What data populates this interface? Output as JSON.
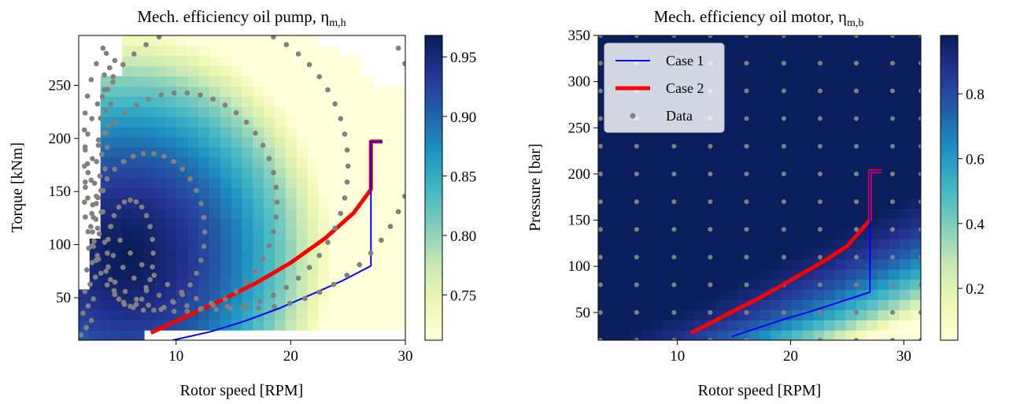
{
  "chart_data": [
    {
      "type": "heatmap",
      "title": "Mech. efficiency oil pump, η",
      "title_sub": "m,h",
      "xlabel": "Rotor speed [RPM]",
      "ylabel": "Torque [kNm]",
      "xlim": [
        1.5,
        30
      ],
      "ylim": [
        10,
        297
      ],
      "xticks": [
        10,
        20,
        30
      ],
      "yticks": [
        50,
        100,
        150,
        200,
        250
      ],
      "colorbar": {
        "range": [
          0.712,
          0.968
        ],
        "ticks": [
          "0.95",
          "0.90",
          "0.85",
          "0.80",
          "0.75"
        ],
        "tick_values": [
          0.95,
          0.9,
          0.85,
          0.8,
          0.75
        ],
        "colormap": "YlGnBu"
      },
      "series": [
        {
          "name": "Case 1",
          "color": "#0000ff",
          "x": [
            9.7,
            13.0,
            16.0,
            19.0,
            22.0,
            24.5,
            27.0,
            27.0,
            27.4,
            28.0
          ],
          "y": [
            10,
            18,
            28,
            40,
            54,
            66,
            80,
            197,
            197,
            197
          ]
        },
        {
          "name": "Case 2",
          "color": "#ff0000",
          "x": [
            7.8,
            11.0,
            14.0,
            17.0,
            20.0,
            23.0,
            25.5,
            27.0,
            27.0,
            27.4,
            28.0
          ],
          "y": [
            17,
            33,
            48,
            64,
            83,
            106,
            130,
            152,
            197,
            197,
            197
          ]
        }
      ],
      "data_points": {
        "name": "Data",
        "color": "#808080",
        "ellipses": [
          {
            "eff": 0.96,
            "cx": 6.0,
            "cy": 92,
            "rx": 2.0,
            "ry": 50,
            "n": 24
          },
          {
            "eff": 0.95,
            "cx": 7.6,
            "cy": 112,
            "rx": 4.9,
            "ry": 74,
            "n": 34
          },
          {
            "eff": 0.94,
            "cx": 10.4,
            "cy": 140,
            "rx": 8.4,
            "ry": 103,
            "n": 46
          },
          {
            "eff": 0.93,
            "cx": 13.5,
            "cy": 174,
            "rx": 11.5,
            "ry": 135,
            "n": 56
          },
          {
            "eff": 0.92,
            "cx": 16.5,
            "cy": 208,
            "rx": 14.5,
            "ry": 168,
            "n": 66
          }
        ]
      }
    },
    {
      "type": "heatmap",
      "title": "Mech. efficiency oil motor, η",
      "title_sub": "m,b",
      "xlabel": "Rotor speed [RPM]",
      "ylabel": "Pressure [bar]",
      "xlim": [
        3,
        31.5
      ],
      "ylim": [
        20,
        350
      ],
      "xticks": [
        10,
        20,
        30
      ],
      "yticks": [
        50,
        100,
        150,
        200,
        250,
        300,
        350
      ],
      "colorbar": {
        "range": [
          0.04,
          0.98
        ],
        "ticks": [
          "0.8",
          "0.6",
          "0.4",
          "0.2"
        ],
        "tick_values": [
          0.8,
          0.6,
          0.4,
          0.2
        ],
        "colormap": "YlGnBu"
      },
      "series": [
        {
          "name": "Case 1",
          "color": "#0000ff",
          "x": [
            14.8,
            17.0,
            19.5,
            22.0,
            24.5,
            27.0,
            27.0,
            27.4,
            28.0
          ],
          "y": [
            24,
            33,
            43,
            52,
            62,
            72,
            203,
            203,
            203
          ]
        },
        {
          "name": "Case 2",
          "color": "#ff0000",
          "x": [
            11.2,
            13.0,
            15.0,
            17.0,
            19.0,
            21.0,
            23.0,
            25.0,
            27.0,
            27.0,
            27.4,
            28.0
          ],
          "y": [
            28,
            39,
            52,
            64,
            78,
            92,
            106,
            122,
            150,
            203,
            203,
            203
          ]
        }
      ],
      "data_points": {
        "name": "Data",
        "color": "#808080",
        "x": [
          3.2,
          6.4,
          9.7,
          12.9,
          16.1,
          19.4,
          22.6,
          25.8,
          29.0,
          31.5
        ],
        "y": [
          20,
          50,
          80,
          110,
          140,
          170,
          200,
          230,
          260,
          290,
          320,
          350
        ]
      },
      "legend": {
        "position": "upper left",
        "entries": [
          "Case 1",
          "Case 2",
          "Data"
        ]
      }
    }
  ]
}
